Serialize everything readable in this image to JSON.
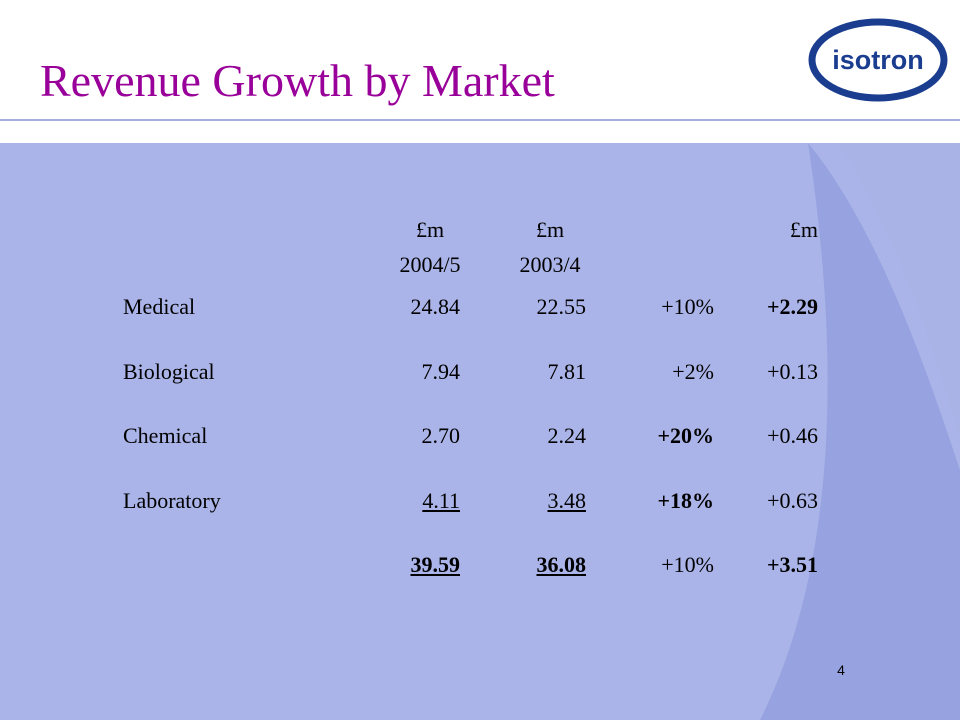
{
  "slide": {
    "title": "Revenue Growth by Market",
    "logo_text": "isotron",
    "page_number": "4"
  },
  "table": {
    "headers": {
      "col1_unit": "£m",
      "col1_period": "2004/5",
      "col2_unit": "£m",
      "col2_period": "2003/4",
      "col4_unit": "£m"
    },
    "rows": [
      {
        "market": "Medical",
        "fy2005": "24.84",
        "fy2004": "22.55",
        "pct": "+10%",
        "change": "+2.29"
      },
      {
        "market": "Biological",
        "fy2005": "7.94",
        "fy2004": "7.81",
        "pct": "+2%",
        "change": "+0.13"
      },
      {
        "market": "Chemical",
        "fy2005": "2.70",
        "fy2004": "2.24",
        "pct": "+20%",
        "change": "+0.46"
      },
      {
        "market": "Laboratory",
        "fy2005": "4.11",
        "fy2004": "3.48",
        "pct": "+18%",
        "change": "+0.63"
      }
    ],
    "total": {
      "fy2005": "39.59",
      "fy2004": "36.08",
      "pct": "+10%",
      "change": "+3.51"
    }
  },
  "colors": {
    "title": "#990099",
    "panel": "#aab4e8",
    "swoosh": "#97a3e0",
    "logo": "#1a3d8f"
  }
}
